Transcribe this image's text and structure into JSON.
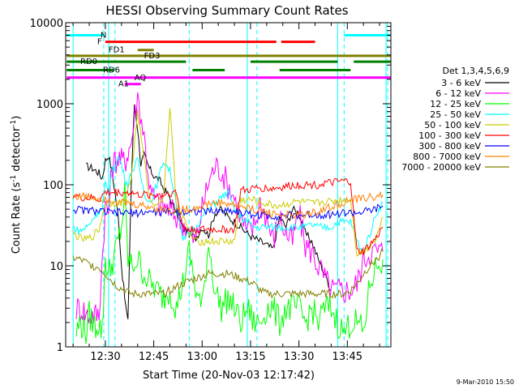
{
  "chart_data": {
    "type": "line",
    "title": "HESSI Observing Summary Count Rates",
    "xlabel": "Start Time (20-Nov-03 12:17:42)",
    "ylabel": "Count Rate (s⁻¹ detector⁻¹)",
    "ylabel_main": "Count Rate (s",
    "ylabel_sup1": "-1",
    "ylabel_mid": " detector",
    "ylabel_sup2": "-1",
    "ylabel_end": ")",
    "yscale": "log",
    "xlim": [
      17.7,
      118.5
    ],
    "ylim": [
      1,
      10000
    ],
    "x_unit_note": "minutes after 12:00 UT",
    "x_ticks": [
      {
        "value": 30,
        "label": "12:30"
      },
      {
        "value": 45,
        "label": "12:45"
      },
      {
        "value": 60,
        "label": "13:00"
      },
      {
        "value": 75,
        "label": "13:15"
      },
      {
        "value": 90,
        "label": "13:30"
      },
      {
        "value": 105,
        "label": "13:45"
      }
    ],
    "y_ticks": [
      {
        "value": 1,
        "label": "1"
      },
      {
        "value": 10,
        "label": "10"
      },
      {
        "value": 100,
        "label": "100"
      },
      {
        "value": 1000,
        "label": "1000"
      },
      {
        "value": 10000,
        "label": "10000"
      }
    ],
    "legend_title": "Det 1,3,4,5,6,9",
    "legend_position": "right",
    "series": [
      {
        "name": "3 - 6 keV",
        "color": "#000000",
        "x": [
          24,
          26,
          27,
          28,
          29,
          30,
          31,
          32,
          33,
          34,
          35,
          36,
          37,
          38,
          39,
          40,
          41,
          42,
          43,
          44,
          45,
          46,
          47,
          48,
          49,
          50,
          52,
          54,
          56,
          58,
          60,
          62,
          64,
          66,
          68,
          70,
          72,
          74,
          76,
          78,
          80,
          82,
          84,
          86,
          88,
          90,
          92,
          94,
          96,
          98,
          100
        ],
        "y": [
          170,
          160,
          150,
          140,
          120,
          200,
          230,
          150,
          80,
          40,
          10,
          4,
          2,
          100,
          1000,
          500,
          180,
          230,
          180,
          150,
          130,
          120,
          110,
          90,
          80,
          70,
          45,
          30,
          25,
          22,
          30,
          24,
          45,
          50,
          40,
          35,
          30,
          25,
          22,
          20,
          18,
          16,
          40,
          30,
          50,
          45,
          25,
          20,
          12,
          8,
          5
        ]
      },
      {
        "name": "6 - 12 keV",
        "color": "#ff00ff",
        "x": [
          21,
          23,
          24,
          26,
          27,
          28,
          30,
          31,
          32,
          33,
          34,
          35,
          36,
          37,
          38,
          40,
          42,
          44,
          46,
          48,
          50,
          52,
          54,
          56,
          58,
          60,
          62,
          64,
          66,
          68,
          70,
          72,
          74,
          76,
          78,
          80,
          82,
          84,
          86,
          88,
          90,
          92,
          94,
          96,
          98,
          100,
          102,
          104,
          106,
          108,
          110,
          112,
          114,
          116
        ],
        "y": [
          3,
          3,
          2.5,
          2.5,
          2.5,
          2.5,
          55,
          45,
          160,
          200,
          220,
          200,
          190,
          260,
          330,
          1300,
          400,
          80,
          60,
          55,
          50,
          40,
          35,
          25,
          20,
          50,
          110,
          170,
          150,
          100,
          70,
          40,
          25,
          30,
          60,
          40,
          20,
          40,
          25,
          20,
          45,
          18,
          15,
          10,
          7,
          5,
          5,
          5,
          5,
          6,
          12,
          15,
          15,
          15
        ]
      },
      {
        "name": "12 - 25 keV",
        "color": "#00ff00",
        "x": [
          21,
          22,
          23,
          24,
          25,
          26,
          27,
          28,
          29,
          30,
          31,
          32,
          33,
          34,
          35,
          36,
          37,
          38,
          40,
          42,
          44,
          46,
          48,
          50,
          52,
          54,
          56,
          58,
          60,
          62,
          64,
          66,
          68,
          70,
          72,
          74,
          76,
          78,
          80,
          82,
          84,
          86,
          88,
          90,
          92,
          94,
          96,
          98,
          100,
          102,
          104,
          106,
          108,
          110,
          112,
          114,
          116
        ],
        "y": [
          1.5,
          2,
          1.8,
          1.5,
          2.5,
          2,
          1.8,
          2,
          1.5,
          12,
          8,
          10,
          15,
          20,
          30,
          80,
          12,
          10,
          12,
          8,
          6,
          5,
          4,
          5,
          3,
          6,
          15,
          5,
          3,
          20,
          5,
          3,
          4,
          3,
          2,
          3,
          2,
          2,
          3,
          3,
          2,
          3,
          3,
          3,
          2,
          3,
          2,
          3,
          3,
          2,
          1.5,
          2,
          2,
          1.5,
          6,
          10,
          12
        ]
      },
      {
        "name": "25 - 50 keV",
        "color": "#00ffff",
        "x": [
          20,
          21,
          22,
          23,
          24,
          25,
          26,
          27,
          28,
          29,
          30,
          31,
          32,
          33,
          34,
          35,
          36,
          37,
          38,
          40,
          42,
          44,
          46,
          48,
          50,
          52,
          54,
          56,
          58,
          60,
          62,
          64,
          66,
          68,
          70,
          72,
          74,
          76,
          78,
          80,
          82,
          84,
          86,
          88,
          90,
          92,
          94,
          96,
          98,
          100,
          102,
          104,
          106,
          108,
          110,
          112,
          114,
          116
        ],
        "y": [
          30,
          28,
          27,
          28,
          30,
          32,
          38,
          43,
          47,
          50,
          100,
          80,
          140,
          180,
          220,
          180,
          120,
          100,
          140,
          200,
          80,
          60,
          100,
          200,
          150,
          60,
          20,
          25,
          30,
          40,
          50,
          60,
          70,
          80,
          50,
          40,
          35,
          30,
          30,
          30,
          30,
          30,
          30,
          30,
          30,
          30,
          32,
          30,
          30,
          30,
          35,
          35,
          35,
          20,
          15,
          25,
          45,
          60
        ]
      },
      {
        "name": "50 - 100 keV",
        "color": "#cccc00",
        "x": [
          20,
          22,
          24,
          26,
          28,
          30,
          32,
          34,
          36,
          38,
          40,
          42,
          44,
          46,
          48,
          50,
          52,
          54,
          56,
          58,
          60,
          62,
          64,
          66,
          68,
          70,
          72,
          74,
          76,
          78,
          80,
          82,
          84,
          86,
          88,
          90,
          92,
          94,
          96,
          98,
          100,
          102,
          104,
          106,
          108,
          110,
          112,
          114,
          116
        ],
        "y": [
          25,
          22,
          21,
          23,
          28,
          60,
          60,
          60,
          60,
          120,
          800,
          200,
          60,
          60,
          70,
          900,
          60,
          40,
          25,
          20,
          20,
          20,
          20,
          20,
          20,
          20,
          65,
          65,
          65,
          60,
          58,
          56,
          55,
          58,
          60,
          62,
          60,
          58,
          60,
          62,
          62,
          65,
          65,
          65,
          14,
          15,
          18,
          22,
          40
        ]
      },
      {
        "name": "100 - 300 keV",
        "color": "#ff0000",
        "x": [
          20,
          22,
          24,
          26,
          28,
          30,
          32,
          34,
          36,
          38,
          40,
          42,
          44,
          46,
          48,
          50,
          52,
          54,
          56,
          58,
          60,
          62,
          64,
          66,
          68,
          70,
          72,
          74,
          76,
          78,
          80,
          82,
          84,
          86,
          88,
          90,
          92,
          94,
          96,
          98,
          100,
          102,
          104,
          106,
          108,
          110,
          112,
          114,
          116
        ],
        "y": [
          75,
          70,
          68,
          68,
          65,
          80,
          80,
          80,
          80,
          80,
          75,
          75,
          75,
          75,
          75,
          80,
          80,
          30,
          28,
          28,
          28,
          28,
          28,
          28,
          28,
          28,
          85,
          85,
          90,
          92,
          90,
          90,
          92,
          95,
          98,
          100,
          100,
          100,
          100,
          105,
          105,
          108,
          110,
          110,
          15,
          15,
          18,
          22,
          30
        ]
      },
      {
        "name": "300 - 800 keV",
        "color": "#0000ff",
        "x": [
          20,
          22,
          24,
          26,
          28,
          30,
          32,
          34,
          36,
          38,
          40,
          42,
          44,
          46,
          48,
          50,
          52,
          54,
          56,
          58,
          60,
          62,
          64,
          66,
          68,
          70,
          72,
          74,
          76,
          78,
          80,
          82,
          84,
          86,
          88,
          90,
          92,
          94,
          96,
          98,
          100,
          102,
          104,
          106,
          108,
          110,
          112,
          114,
          116
        ],
        "y": [
          50,
          49,
          48,
          48,
          47,
          46,
          45,
          45,
          45,
          45,
          45,
          46,
          46,
          46,
          46,
          46,
          46,
          47,
          47,
          47,
          47,
          47,
          47,
          48,
          48,
          48,
          45,
          44,
          43,
          42,
          42,
          41,
          41,
          42,
          42,
          42,
          42,
          43,
          43,
          43,
          43,
          44,
          45,
          45,
          45,
          46,
          48,
          50,
          55
        ]
      },
      {
        "name": "800 - 7000 keV",
        "color": "#ff8000",
        "x": [
          20,
          22,
          24,
          26,
          28,
          30,
          32,
          34,
          36,
          38,
          40,
          42,
          44,
          46,
          48,
          50,
          52,
          54,
          56,
          58,
          60,
          62,
          64,
          66,
          68,
          70,
          72,
          74,
          76,
          78,
          80,
          82,
          84,
          86,
          88,
          90,
          92,
          94,
          96,
          98,
          100,
          102,
          104,
          106,
          108,
          110,
          112,
          114,
          116
        ],
        "y": [
          73,
          72,
          72,
          70,
          68,
          68,
          65,
          62,
          60,
          58,
          56,
          55,
          53,
          51,
          50,
          48,
          48,
          49,
          50,
          52,
          55,
          58,
          60,
          60,
          58,
          56,
          54,
          52,
          50,
          48,
          46,
          44,
          43,
          42,
          42,
          42,
          43,
          45,
          47,
          50,
          53,
          57,
          61,
          64,
          66,
          68,
          70,
          72,
          75
        ]
      },
      {
        "name": "7000 - 20000 keV",
        "color": "#808000",
        "x": [
          20,
          22,
          24,
          26,
          28,
          30,
          32,
          34,
          36,
          38,
          40,
          42,
          44,
          46,
          48,
          50,
          52,
          54,
          56,
          58,
          60,
          62,
          64,
          66,
          68,
          70,
          72,
          74,
          76,
          78,
          80,
          82,
          84,
          86,
          88,
          90,
          92,
          94,
          96,
          98,
          100,
          102,
          104,
          106,
          108,
          110,
          112,
          114,
          116
        ],
        "y": [
          12.5,
          12,
          11,
          10,
          9.5,
          8,
          6.5,
          5.5,
          5,
          4.5,
          4.5,
          4.5,
          4.5,
          4.5,
          4.5,
          5,
          5.5,
          6,
          6.5,
          7,
          7.5,
          8,
          8,
          8,
          8,
          7.5,
          7,
          6.5,
          6,
          5,
          4.5,
          4.5,
          4.5,
          4.5,
          4.5,
          4.5,
          4.5,
          4.5,
          4.5,
          4.5,
          4.5,
          4.5,
          4.5,
          5,
          6,
          8,
          10,
          12,
          15
        ]
      }
    ],
    "vertical_markers": {
      "color": "#00ffff",
      "solid": [
        20,
        31,
        74,
        102,
        117
      ],
      "dashed": [
        29.5,
        33,
        56,
        77,
        104,
        117.5
      ]
    },
    "flag_bars": [
      {
        "label": "N",
        "color": "#00ffff",
        "value": 7000,
        "segments": [
          [
            18,
            29.5
          ],
          [
            104,
            118.5
          ]
        ]
      },
      {
        "label": "F",
        "color": "#ff0000",
        "value": 5800,
        "segments": [
          [
            30,
            83
          ],
          [
            84.5,
            95
          ]
        ]
      },
      {
        "label": "FD1",
        "color": "#808000",
        "value": 4600,
        "segments": [
          [
            40,
            45
          ]
        ]
      },
      {
        "label": "FD3",
        "color": "#808000",
        "value": 3900,
        "segments": [
          [
            18,
            118.5
          ]
        ]
      },
      {
        "label": "RD0",
        "color": "#008000",
        "value": 3300,
        "segments": [
          [
            18,
            55
          ],
          [
            75,
            102
          ],
          [
            107,
            118.5
          ]
        ]
      },
      {
        "label": "RD6",
        "color": "#008000",
        "value": 2600,
        "segments": [
          [
            18,
            32.5
          ],
          [
            57,
            67
          ],
          [
            84,
            106
          ]
        ]
      },
      {
        "label": "AQ",
        "color": "#ff00ff",
        "value": 2100,
        "segments": [
          [
            18,
            118.5
          ]
        ]
      },
      {
        "label": "A1",
        "color": "#ff00ff",
        "value": 1750,
        "segments": [
          [
            36,
            41
          ]
        ]
      }
    ],
    "footer": "9-Mar-2010 15:50"
  }
}
